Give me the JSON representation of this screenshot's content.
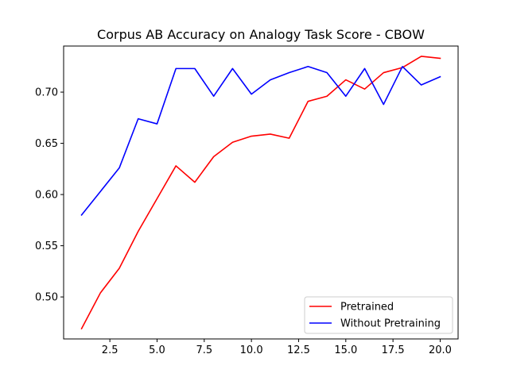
{
  "chart_data": {
    "type": "line",
    "title": "Corpus AB Accuracy on Analogy Task Score - CBOW",
    "xlabel": "",
    "ylabel": "",
    "xlim": [
      0.05,
      20.95
    ],
    "ylim": [
      0.459,
      0.745
    ],
    "x_ticks": [
      2.5,
      5.0,
      7.5,
      10.0,
      12.5,
      15.0,
      17.5,
      20.0
    ],
    "x_tick_labels": [
      "2.5",
      "5.0",
      "7.5",
      "10.0",
      "12.5",
      "15.0",
      "17.5",
      "20.0"
    ],
    "y_ticks": [
      0.5,
      0.55,
      0.6,
      0.65,
      0.7
    ],
    "y_tick_labels": [
      "0.50",
      "0.55",
      "0.60",
      "0.65",
      "0.70"
    ],
    "grid": false,
    "legend_position": "lower-right",
    "x": [
      1,
      2,
      3,
      4,
      5,
      6,
      7,
      8,
      9,
      10,
      11,
      12,
      13,
      14,
      15,
      16,
      17,
      18,
      19,
      20
    ],
    "series": [
      {
        "name": "Pretrained",
        "color": "#ff0000",
        "values": [
          0.469,
          0.504,
          0.528,
          0.564,
          0.596,
          0.628,
          0.612,
          0.637,
          0.651,
          0.657,
          0.659,
          0.655,
          0.691,
          0.696,
          0.712,
          0.703,
          0.719,
          0.724,
          0.735,
          0.733
        ]
      },
      {
        "name": "Without Pretraining",
        "color": "#0000ff",
        "values": [
          0.58,
          0.603,
          0.626,
          0.674,
          0.669,
          0.723,
          0.723,
          0.696,
          0.723,
          0.698,
          0.712,
          0.719,
          0.725,
          0.719,
          0.696,
          0.723,
          0.688,
          0.725,
          0.707,
          0.715
        ]
      }
    ]
  }
}
